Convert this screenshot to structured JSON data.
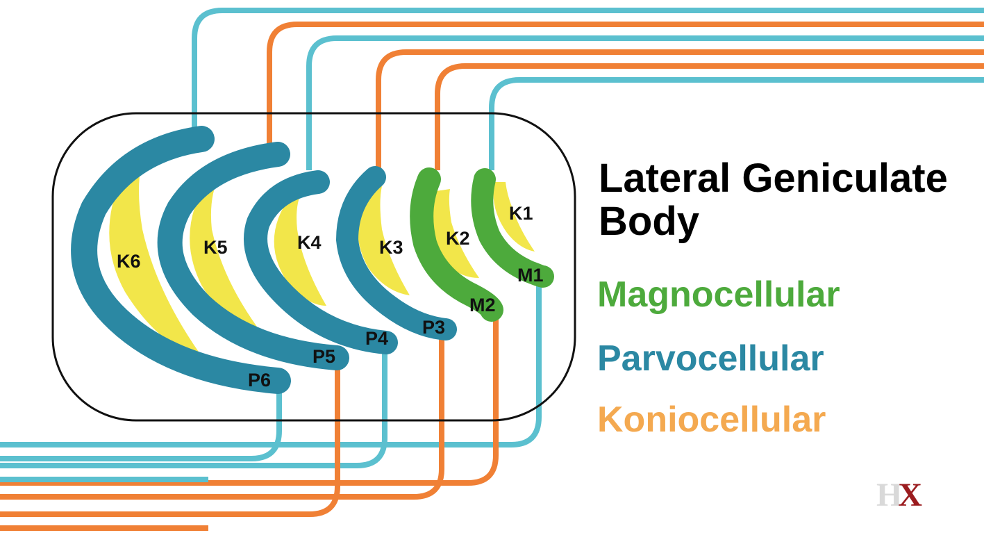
{
  "title": "Lateral Geniculate Body",
  "legend": {
    "magnocellular": "Magnocellular",
    "parvocellular": "Parvocellular",
    "koniocellular": "Koniocellular"
  },
  "colors": {
    "magno": "#4daa3c",
    "parvo": "#2b88a3",
    "konio_fill": "#f2e64a",
    "konio_text": "#f4a950",
    "fiber_blue": "#5bc0cf",
    "fiber_orange": "#f08035",
    "outline": "#111111"
  },
  "layers": {
    "k1": "K1",
    "k2": "K2",
    "k3": "K3",
    "k4": "K4",
    "k5": "K5",
    "k6": "K6",
    "m1": "M1",
    "m2": "M2",
    "p3": "P3",
    "p4": "P4",
    "p5": "P5",
    "p6": "P6"
  },
  "logo": {
    "letters": "HX"
  }
}
